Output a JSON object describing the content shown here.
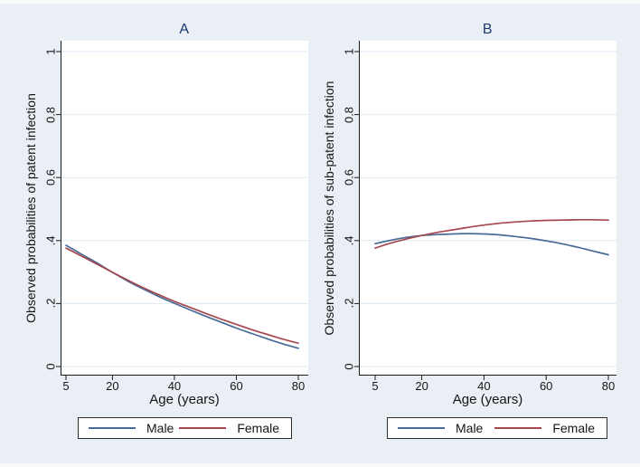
{
  "colors": {
    "background": "#e9eff5",
    "plot_background": "#ffffff",
    "gridline": "#dde9f3",
    "axis": "#1a1a1a",
    "panel_title": "#1e3a6d",
    "male_line": "#4a6b96",
    "female_line": "#a6474f"
  },
  "chart_data": [
    {
      "type": "line",
      "title": "A",
      "xlabel": "Age (years)",
      "ylabel": "Observed probabilities of patent infection",
      "xlim": [
        5,
        80
      ],
      "ylim": [
        0,
        1
      ],
      "grid": "horizontal gridlines on, white plot area",
      "legend_position": "below plot, boxed",
      "x": [
        5,
        10,
        15,
        20,
        25,
        30,
        35,
        40,
        45,
        50,
        55,
        60,
        65,
        70,
        75,
        80
      ],
      "xtick_values": [
        5,
        20,
        40,
        60,
        80
      ],
      "xtick_labels": [
        "5",
        "20",
        "40",
        "60",
        "80"
      ],
      "ytick_values": [
        0,
        0.2,
        0.4,
        0.6,
        0.8,
        1
      ],
      "ytick_labels": [
        "0",
        ".2",
        ".4",
        "0.6",
        "0.8",
        "1"
      ],
      "series": [
        {
          "name": "Male",
          "color": "#4a6b96",
          "values": [
            0.385,
            0.357,
            0.329,
            0.299,
            0.271,
            0.246,
            0.222,
            0.201,
            0.18,
            0.16,
            0.141,
            0.122,
            0.105,
            0.088,
            0.072,
            0.058
          ]
        },
        {
          "name": "Female",
          "color": "#a6474f",
          "values": [
            0.376,
            0.351,
            0.325,
            0.299,
            0.274,
            0.25,
            0.228,
            0.207,
            0.188,
            0.169,
            0.151,
            0.134,
            0.117,
            0.102,
            0.087,
            0.074
          ]
        }
      ]
    },
    {
      "type": "line",
      "title": "B",
      "xlabel": "Age (years)",
      "ylabel": "Observed probabilities of sub-patent infection",
      "xlim": [
        5,
        80
      ],
      "ylim": [
        0,
        1
      ],
      "grid": "horizontal gridlines on, white plot area",
      "legend_position": "below plot, boxed",
      "x": [
        5,
        10,
        15,
        20,
        25,
        30,
        35,
        40,
        45,
        50,
        55,
        60,
        65,
        70,
        75,
        80
      ],
      "xtick_values": [
        5,
        20,
        40,
        60,
        80
      ],
      "xtick_labels": [
        "5",
        "20",
        "40",
        "60",
        "80"
      ],
      "ytick_values": [
        0,
        0.2,
        0.4,
        0.6,
        0.8,
        1
      ],
      "ytick_labels": [
        "0",
        ".2",
        ".4",
        "0.6",
        "0.8",
        "1"
      ],
      "series": [
        {
          "name": "Male",
          "color": "#4a6b96",
          "values": [
            0.39,
            0.401,
            0.41,
            0.416,
            0.419,
            0.421,
            0.422,
            0.421,
            0.418,
            0.413,
            0.407,
            0.399,
            0.39,
            0.379,
            0.367,
            0.355
          ]
        },
        {
          "name": "Female",
          "color": "#a6474f",
          "values": [
            0.376,
            0.392,
            0.405,
            0.416,
            0.426,
            0.434,
            0.442,
            0.449,
            0.455,
            0.459,
            0.462,
            0.464,
            0.465,
            0.466,
            0.466,
            0.465
          ]
        }
      ]
    }
  ]
}
